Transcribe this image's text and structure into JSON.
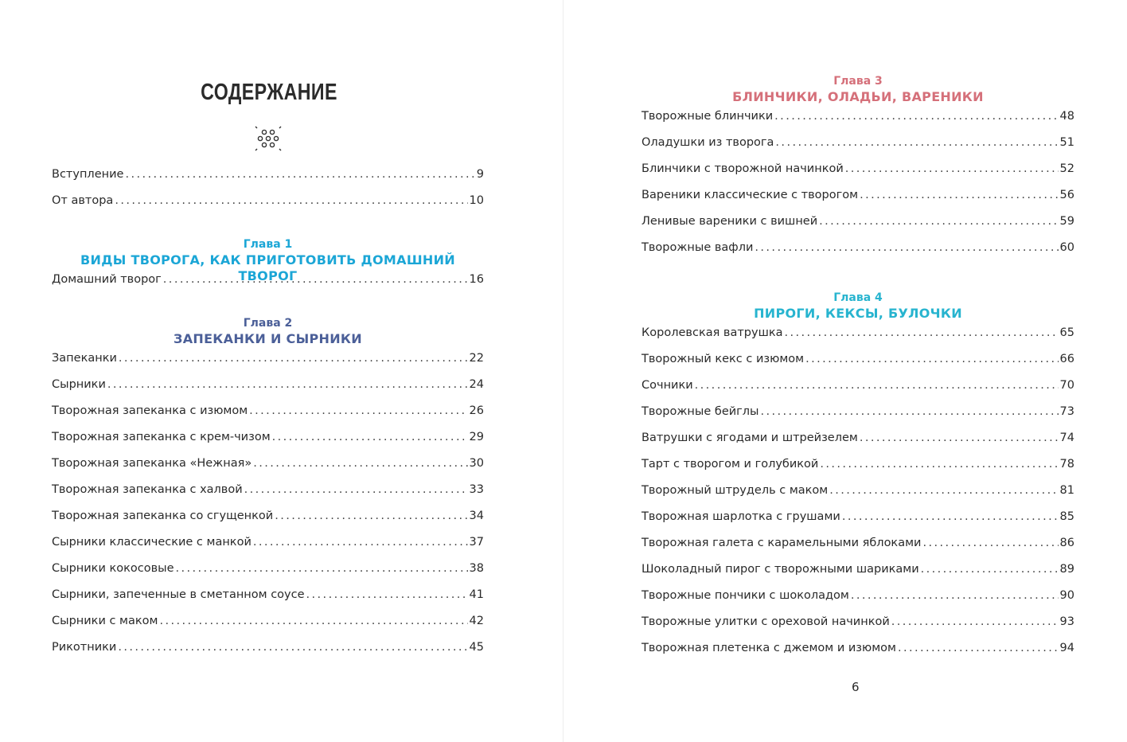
{
  "title": "СОДЕРЖАНИЕ",
  "page_number": "6",
  "colors": {
    "chapter1": "#1ba6d6",
    "chapter2": "#4b5f98",
    "chapter3": "#d5707a",
    "chapter4": "#27b4cf"
  },
  "intro": [
    {
      "name": "Вступление",
      "page": "9"
    },
    {
      "name": "От автора",
      "page": "10"
    }
  ],
  "chapters": [
    {
      "label": "Глава 1",
      "title": "ВИДЫ ТВОРОГА, КАК ПРИГОТОВИТЬ ДОМАШНИЙ ТВОРОГ",
      "items": [
        {
          "name": "Домашний творог",
          "page": "16"
        }
      ]
    },
    {
      "label": "Глава 2",
      "title": "ЗАПЕКАНКИ И СЫРНИКИ",
      "items": [
        {
          "name": "Запеканки",
          "page": "22"
        },
        {
          "name": "Сырники",
          "page": "24"
        },
        {
          "name": "Творожная запеканка с изюмом",
          "page": "26"
        },
        {
          "name": "Творожная запеканка с крем-чизом",
          "page": "29"
        },
        {
          "name": "Творожная запеканка «Нежная»",
          "page": "30"
        },
        {
          "name": "Творожная запеканка с халвой",
          "page": "33"
        },
        {
          "name": "Творожная запеканка со сгущенкой",
          "page": "34"
        },
        {
          "name": "Сырники классические с манкой",
          "page": "37"
        },
        {
          "name": "Сырники кокосовые",
          "page": "38"
        },
        {
          "name": "Сырники, запеченные в сметанном соусе",
          "page": "41"
        },
        {
          "name": "Сырники с маком",
          "page": "42"
        },
        {
          "name": "Рикотники",
          "page": "45"
        }
      ]
    },
    {
      "label": "Глава 3",
      "title": "БЛИНЧИКИ, ОЛАДЬИ, ВАРЕНИКИ",
      "items": [
        {
          "name": "Творожные блинчики",
          "page": "48"
        },
        {
          "name": "Оладушки из творога",
          "page": "51"
        },
        {
          "name": "Блинчики с творожной начинкой",
          "page": "52"
        },
        {
          "name": "Вареники классические с творогом",
          "page": "56"
        },
        {
          "name": "Ленивые вареники с вишней",
          "page": "59"
        },
        {
          "name": "Творожные вафли",
          "page": "60"
        }
      ]
    },
    {
      "label": "Глава 4",
      "title": "ПИРОГИ, КЕКСЫ, БУЛОЧКИ",
      "items": [
        {
          "name": "Королевская ватрушка",
          "page": "65"
        },
        {
          "name": "Творожный кекс с изюмом",
          "page": "66"
        },
        {
          "name": "Сочники",
          "page": "70"
        },
        {
          "name": "Творожные бейглы",
          "page": "73"
        },
        {
          "name": "Ватрушки с ягодами и штрейзелем",
          "page": "74"
        },
        {
          "name": "Тарт с творогом и голубикой",
          "page": "78"
        },
        {
          "name": "Творожный штрудель с маком",
          "page": "81"
        },
        {
          "name": "Творожная шарлотка с грушами",
          "page": "85"
        },
        {
          "name": "Творожная галета с карамельными яблоками",
          "page": "86"
        },
        {
          "name": "Шоколадный пирог с творожными шариками",
          "page": "89"
        },
        {
          "name": "Творожные пончики с шоколадом",
          "page": "90"
        },
        {
          "name": "Творожные улитки с ореховой начинкой",
          "page": "93"
        },
        {
          "name": "Творожная плетенка с джемом и изюмом",
          "page": "94"
        }
      ]
    }
  ]
}
